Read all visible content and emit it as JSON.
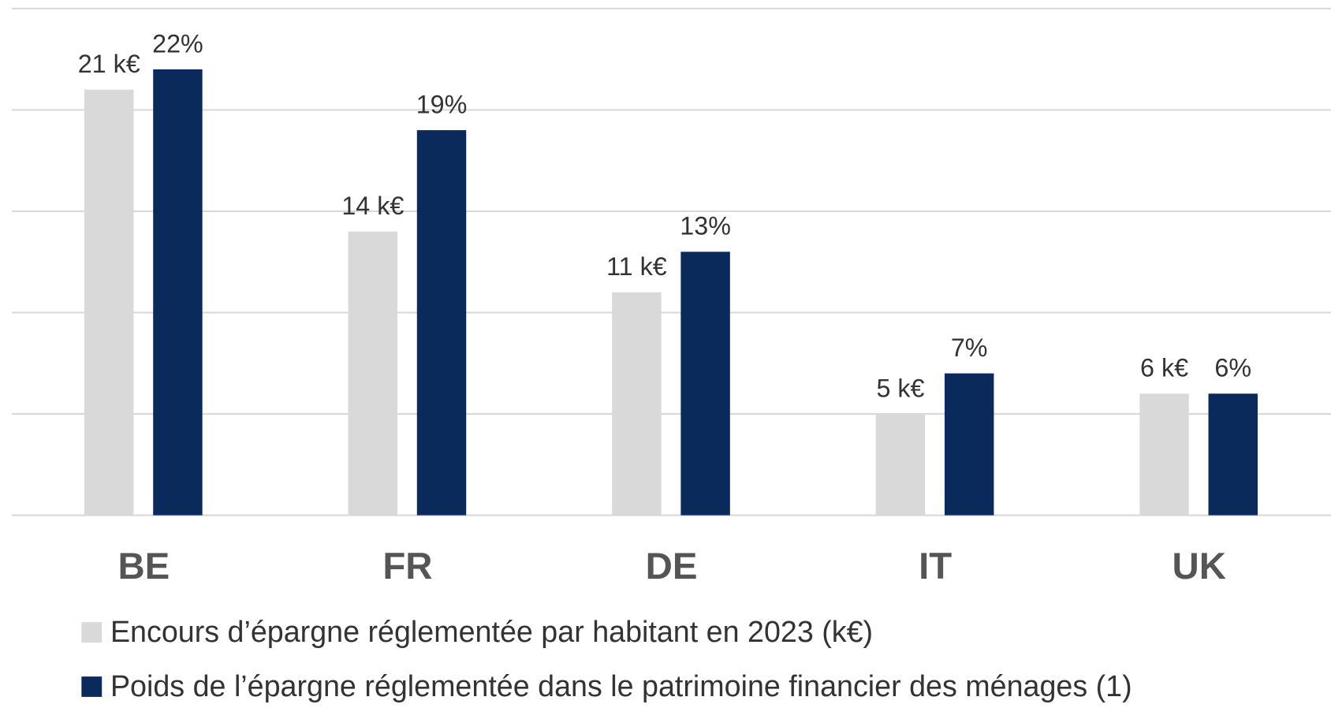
{
  "chart_data": {
    "type": "bar",
    "categories": [
      "BE",
      "FR",
      "DE",
      "IT",
      "UK"
    ],
    "series": [
      {
        "name": "Encours d’épargne réglementée par habitant en 2023 (k€)",
        "color": "#d9d9d9",
        "values": [
          21,
          14,
          11,
          5,
          6
        ],
        "value_labels": [
          "21 k€",
          "14 k€",
          "11 k€",
          "5 k€",
          "6 k€"
        ]
      },
      {
        "name": "Poids de l’épargne réglementée dans le patrimoine financier des ménages (1)",
        "color": "#0a2a5c",
        "values": [
          22,
          19,
          13,
          7,
          6
        ],
        "value_labels": [
          "22%",
          "19%",
          "13%",
          "7%",
          "6%"
        ]
      }
    ],
    "ylim": [
      0,
      25
    ],
    "yticks": [
      0,
      5,
      10,
      15,
      20,
      25
    ],
    "grid": true,
    "legend": "bottom-left"
  }
}
